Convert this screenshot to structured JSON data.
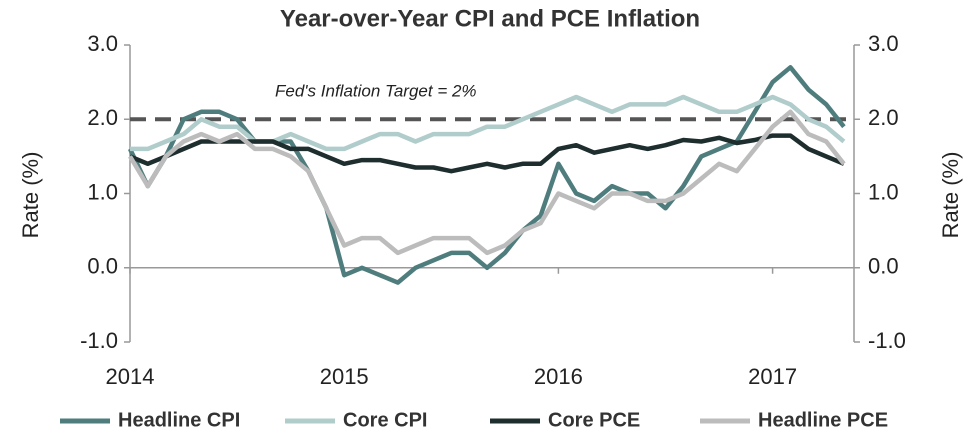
{
  "chart_data": {
    "type": "line",
    "title": "Year-over-Year CPI and PCE Inflation",
    "y_label": "Rate (%)",
    "y2_label": "Rate (%)",
    "annotation": "Fed's Inflation Target = 2%",
    "target": 2,
    "target_color": "#555555",
    "x": [
      2014.0,
      2014.083,
      2014.167,
      2014.25,
      2014.333,
      2014.417,
      2014.5,
      2014.583,
      2014.667,
      2014.75,
      2014.833,
      2014.917,
      2015.0,
      2015.083,
      2015.167,
      2015.25,
      2015.333,
      2015.417,
      2015.5,
      2015.583,
      2015.667,
      2015.75,
      2015.833,
      2015.917,
      2016.0,
      2016.083,
      2016.167,
      2016.25,
      2016.333,
      2016.417,
      2016.5,
      2016.583,
      2016.667,
      2016.75,
      2016.833,
      2016.917,
      2017.0,
      2017.083,
      2017.167,
      2017.25,
      2017.333
    ],
    "xlim": [
      2014,
      2017.38
    ],
    "xticks": [
      2014,
      2015,
      2016,
      2017
    ],
    "ylim": [
      -1,
      3
    ],
    "yticks": [
      {
        "value": -1,
        "label": "-1.0"
      },
      {
        "value": 0,
        "label": "0.0"
      },
      {
        "value": 1,
        "label": "1.0"
      },
      {
        "value": 2,
        "label": "2.0"
      },
      {
        "value": 3,
        "label": "3.0"
      }
    ],
    "y2lim": [
      -1,
      3
    ],
    "y2ticks": [
      {
        "value": -1,
        "label": "-1.0"
      },
      {
        "value": 0,
        "label": "0.0"
      },
      {
        "value": 1,
        "label": "1.0"
      },
      {
        "value": 2,
        "label": "2.0"
      },
      {
        "value": 3,
        "label": "3.0"
      }
    ],
    "legend": "bottom",
    "series": [
      {
        "name": "Headline CPI",
        "color": "#4f7d7d",
        "values": [
          1.6,
          1.1,
          1.5,
          2.0,
          2.1,
          2.1,
          2.0,
          1.7,
          1.7,
          1.7,
          1.3,
          0.8,
          -0.1,
          0.0,
          -0.1,
          -0.2,
          0.0,
          0.1,
          0.2,
          0.2,
          0.0,
          0.2,
          0.5,
          0.7,
          1.4,
          1.0,
          0.9,
          1.1,
          1.0,
          1.0,
          0.8,
          1.1,
          1.5,
          1.6,
          1.7,
          2.1,
          2.5,
          2.7,
          2.4,
          2.2,
          1.9
        ]
      },
      {
        "name": "Core CPI",
        "color": "#b0cccb",
        "values": [
          1.6,
          1.6,
          1.7,
          1.8,
          2.0,
          1.9,
          1.9,
          1.7,
          1.7,
          1.8,
          1.7,
          1.6,
          1.6,
          1.7,
          1.8,
          1.8,
          1.7,
          1.8,
          1.8,
          1.8,
          1.9,
          1.9,
          2.0,
          2.1,
          2.2,
          2.3,
          2.2,
          2.1,
          2.2,
          2.2,
          2.2,
          2.3,
          2.2,
          2.1,
          2.1,
          2.2,
          2.3,
          2.2,
          2.0,
          1.9,
          1.7
        ]
      },
      {
        "name": "Core PCE",
        "color": "#1e2d2d",
        "values": [
          1.5,
          1.4,
          1.5,
          1.6,
          1.7,
          1.7,
          1.7,
          1.7,
          1.7,
          1.6,
          1.6,
          1.5,
          1.4,
          1.45,
          1.45,
          1.4,
          1.35,
          1.35,
          1.3,
          1.35,
          1.4,
          1.35,
          1.4,
          1.4,
          1.6,
          1.65,
          1.55,
          1.6,
          1.65,
          1.6,
          1.65,
          1.72,
          1.7,
          1.75,
          1.68,
          1.72,
          1.78,
          1.78,
          1.6,
          1.5,
          1.4
        ]
      },
      {
        "name": "Headline PCE",
        "color": "#bcbcbc",
        "values": [
          1.5,
          1.1,
          1.5,
          1.7,
          1.8,
          1.7,
          1.8,
          1.6,
          1.6,
          1.5,
          1.3,
          0.8,
          0.3,
          0.4,
          0.4,
          0.2,
          0.3,
          0.4,
          0.4,
          0.4,
          0.2,
          0.3,
          0.5,
          0.6,
          1.0,
          0.9,
          0.8,
          1.0,
          1.0,
          0.9,
          0.9,
          1.0,
          1.2,
          1.4,
          1.3,
          1.6,
          1.9,
          2.1,
          1.8,
          1.7,
          1.4
        ]
      }
    ]
  }
}
